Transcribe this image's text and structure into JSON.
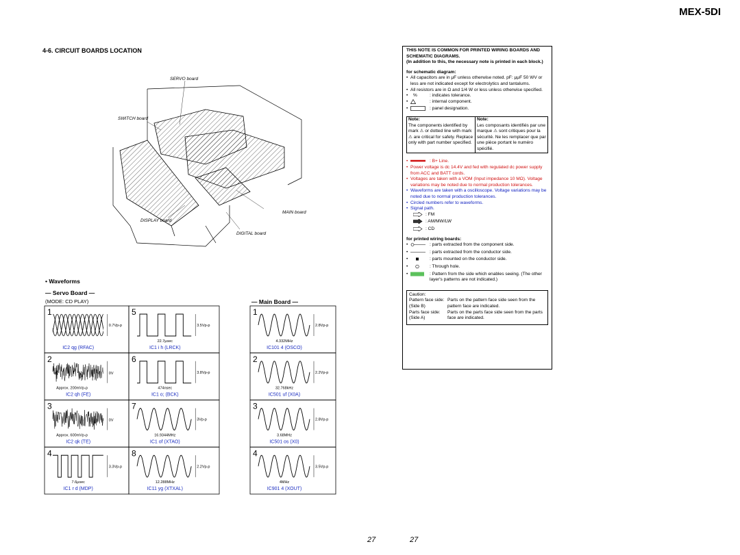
{
  "header": {
    "model": "MEX-5DI"
  },
  "section": {
    "title": "4-6. CIRCUIT BOARDS LOCATION"
  },
  "boards": {
    "servo": "SERVO board",
    "switch": "SWITCH board",
    "main": "MAIN board",
    "display": "DISPLAY board",
    "digital": "DIGITAL board"
  },
  "waveforms": {
    "heading": "• Waveforms",
    "servo": {
      "title": "— Servo Board —",
      "mode": "(MODE: CD PLAY)",
      "items": [
        {
          "number": "1",
          "amplitude": "0.7Vp-p",
          "label": "IC2  qg  (RFAC)"
        },
        {
          "number": "2",
          "zero": "0V",
          "amplitude": "Approx. 200mVp-p",
          "label": "IC2  qh  (FE)"
        },
        {
          "number": "3",
          "zero": "0V",
          "amplitude": "Approx. 600mVp-p",
          "label": "IC2  qk  (TE)"
        },
        {
          "number": "4",
          "amplitude": "3.3Vp-p",
          "note": "7.6μsec",
          "label": "IC1  r d  (MDP)"
        },
        {
          "number": "5",
          "amplitude": "3.5Vp-p",
          "note": "22.7μsec",
          "label": "IC1  i h  (LRCK)"
        },
        {
          "number": "6",
          "amplitude": "3.8Vp-p",
          "note": "474nsec",
          "label": "IC1  o;  (BCK)"
        },
        {
          "number": "7",
          "amplitude": "3Vp-p",
          "note": "16.9344MHz",
          "label": "IC1  of  (XTAO)"
        },
        {
          "number": "8",
          "amplitude": "2.2Vp-p",
          "note": "12.288MHz",
          "label": "IC11  yg  (XTXAL)"
        }
      ]
    },
    "main": {
      "title": "— Main Board —",
      "items": [
        {
          "number": "1",
          "amplitude": "2.8Vp-p",
          "note": "4.332MHz",
          "label": "IC101  4   (OSCO)"
        },
        {
          "number": "2",
          "amplitude": "2.2Vp-p",
          "note": "32.768kHz",
          "label": "IC501  uf  (X0A)"
        },
        {
          "number": "3",
          "amplitude": "2.8Vp-p",
          "note": "3.68MHz",
          "label": "IC501  os  (X0)"
        },
        {
          "number": "4",
          "amplitude": "3.5Vp-p",
          "note": "4MHz",
          "label": "IC901  4   (XOUT)"
        }
      ]
    }
  },
  "note": {
    "intro": "THIS NOTE IS COMMON FOR PRINTED WIRING BOARDS AND SCHEMATIC DIAGRAMS.",
    "intro2": "(In addition to this, the necessary note is printed in each block.)",
    "schematic_heading": "for schematic diagram:",
    "schematic": [
      "All capacitors are in μF unless otherwise noted. pF: μμF 50 WV or less are not indicated except for electrolytics and tantalums.",
      "All resistors are in Ω and 1/4 W or less unless otherwise specified."
    ],
    "percent_symbol": "%",
    "symbols": [
      ": indicates tolerance.",
      ": internal component.",
      ": panel designation."
    ],
    "caution_en": {
      "title": "Note:",
      "text": "The components identified by mark ⚠ or dotted line with mark ⚠ are critical for safety. Replace only with part number specified."
    },
    "caution_fr": {
      "title": "Note:",
      "text": "Les composants identifiés par une marque ⚠ sont critiques pour la sécurité. Ne les remplacer que par une pièce portant le numéro spécifié."
    },
    "b_line": ": B+ Line.",
    "red": [
      "Power voltage is dc 14.4V and fed with regulated dc power supply from ACC and BATT cords.",
      "Voltages are taken with a VOM (Input impedance 10 MΩ). Voltage variations may be noted due to normal production tolerances."
    ],
    "blue": [
      "Waveforms are taken with a oscilloscope. Voltage variations may be noted due to normal production tolerances.",
      "Circled numbers refer to waveforms.",
      "Signal path."
    ],
    "signals": [
      ": FM",
      ": AM/MW/LW",
      ": CD"
    ],
    "wiring_heading": "for printed wiring boards:",
    "wiring": [
      ": parts extracted from the component side.",
      ": parts extracted from the conductor side.",
      ": parts mounted on the conductor side.",
      ": Through hole.",
      ": Pattern from the side which enables seeing. (The other layer's patterns are not indicated.)"
    ],
    "caution_box": {
      "title": "Caution:",
      "rows": [
        [
          "Pattern face side: (Side B)",
          "Parts on the pattern face side seen from the pattern face are indicated."
        ],
        [
          "Parts face side: (Side A)",
          "Parts on the parts face side seen from the parts face are indicated."
        ]
      ]
    }
  },
  "footer": {
    "page_left": "27",
    "page_right": "27"
  }
}
